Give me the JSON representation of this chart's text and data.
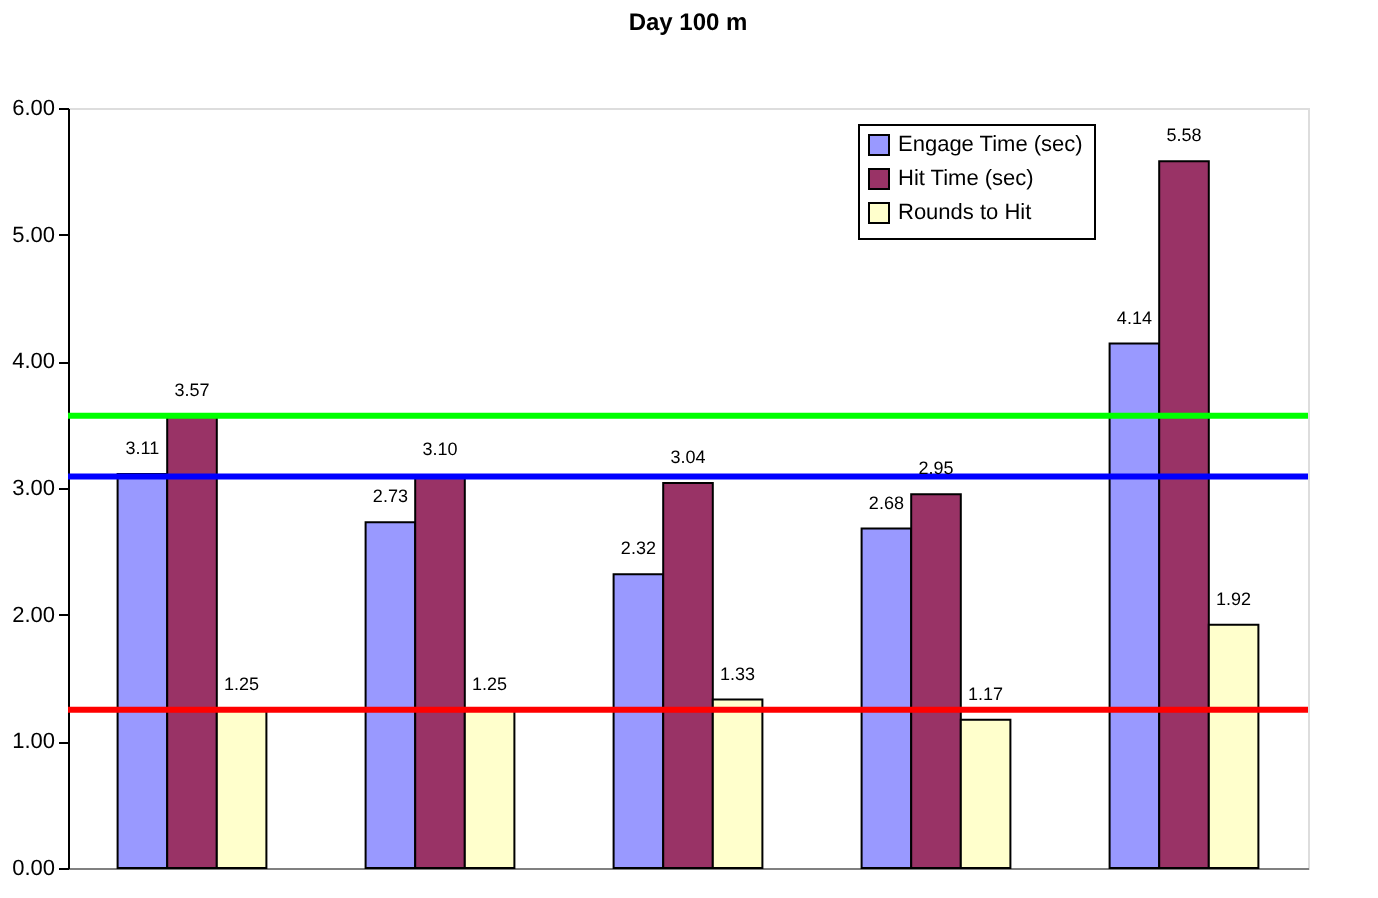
{
  "chart_data": {
    "type": "bar",
    "title": "Day 100 m",
    "categories": [
      null,
      null,
      null,
      null,
      null
    ],
    "series": [
      {
        "name": "Engage Time (sec)",
        "color": "#9999ff",
        "values": [
          3.11,
          2.73,
          2.32,
          2.68,
          4.14
        ],
        "value_labels": [
          "3.11",
          "2.73",
          "2.32",
          "2.68",
          "4.14"
        ]
      },
      {
        "name": "Hit Time (sec)",
        "color": "#993366",
        "values": [
          3.57,
          3.1,
          3.04,
          2.95,
          5.58
        ],
        "value_labels": [
          "3.57",
          "3.10",
          "3.04",
          "2.95",
          "5.58"
        ]
      },
      {
        "name": "Rounds to Hit",
        "color": "#ffffcc",
        "values": [
          1.25,
          1.25,
          1.33,
          1.17,
          1.92
        ],
        "value_labels": [
          "1.25",
          "1.25",
          "1.33",
          "1.17",
          "1.92"
        ]
      }
    ],
    "ylim": [
      0,
      6
    ],
    "yticks": [
      {
        "value": 0,
        "label": "0.00"
      },
      {
        "value": 1,
        "label": "1.00"
      },
      {
        "value": 2,
        "label": "2.00"
      },
      {
        "value": 3,
        "label": "3.00"
      },
      {
        "value": 4,
        "label": "4.00"
      },
      {
        "value": 5,
        "label": "5.00"
      },
      {
        "value": 6,
        "label": "6.00"
      }
    ],
    "ref_lines": [
      {
        "axis": "y",
        "value": 3.57,
        "color": "#00ff00"
      },
      {
        "axis": "y",
        "value": 3.09,
        "color": "#0000ff"
      },
      {
        "axis": "y",
        "value": 1.25,
        "color": "#ff0000"
      }
    ],
    "legend": "top right",
    "grid": false,
    "tick_labels": "y"
  }
}
